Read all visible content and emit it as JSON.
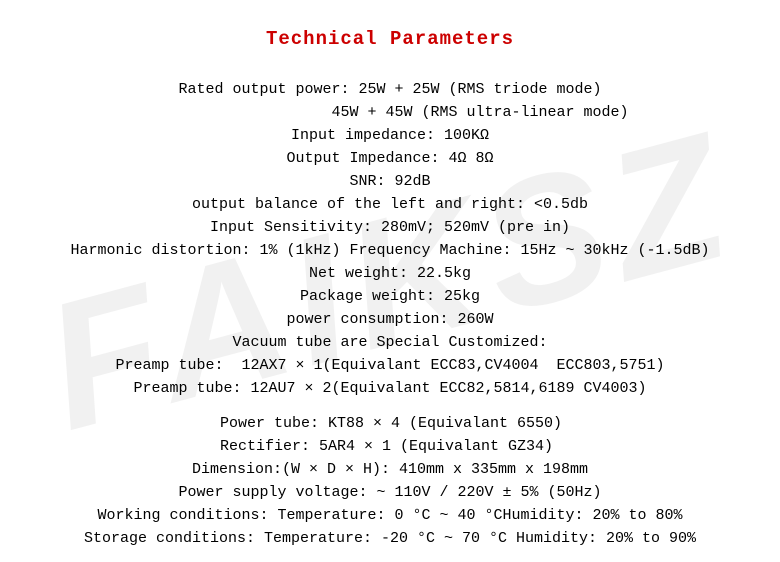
{
  "watermark": "FAIKSZ",
  "title": "Technical Parameters",
  "colors": {
    "title": "#cc0000",
    "text": "#000000",
    "background": "#ffffff",
    "watermark": "rgba(200,200,200,0.25)"
  },
  "l1": "Rated output power: 25W + 25W (RMS triode mode)",
  "l2": "                    45W + 45W (RMS ultra-linear mode)",
  "l3": "Input impedance: 100KΩ",
  "l4": "Output Impedance: 4Ω 8Ω",
  "l5": "SNR: 92dB",
  "l6": "output balance of the left and right: <0.5db",
  "l7": "Input Sensitivity: 280mV; 520mV (pre in)",
  "l8": "Harmonic distortion: 1% (1kHz) Frequency Machine: 15Hz ~ 30kHz (-1.5dB)",
  "l9": "Net weight: 22.5kg",
  "l10": "Package weight: 25kg",
  "l11": "power consumption: 260W",
  "l12": "Vacuum tube are Special Customized:",
  "l13": "Preamp tube:  12AX7 × 1(Equivalant ECC83,CV4004  ECC803,5751)",
  "l14": "Preamp tube: 12AU7 × 2(Equivalant ECC82,5814,6189 CV4003)",
  "l15": "Power tube: KT88 × 4 (Equivalant 6550)",
  "l16": "Rectifier: 5AR4 × 1 (Equivalant GZ34)",
  "l17": "Dimension:(W × D × H): 410mm x 335mm x 198mm",
  "l18": "Power supply voltage: ~ 110V / 220V ± 5% (50Hz)",
  "l19": "Working conditions: Temperature: 0 °C ~ 40 °CHumidity: 20% to 80%",
  "l20": "Storage conditions: Temperature: -20 °C ~ 70 °C Humidity: 20% to 90%"
}
